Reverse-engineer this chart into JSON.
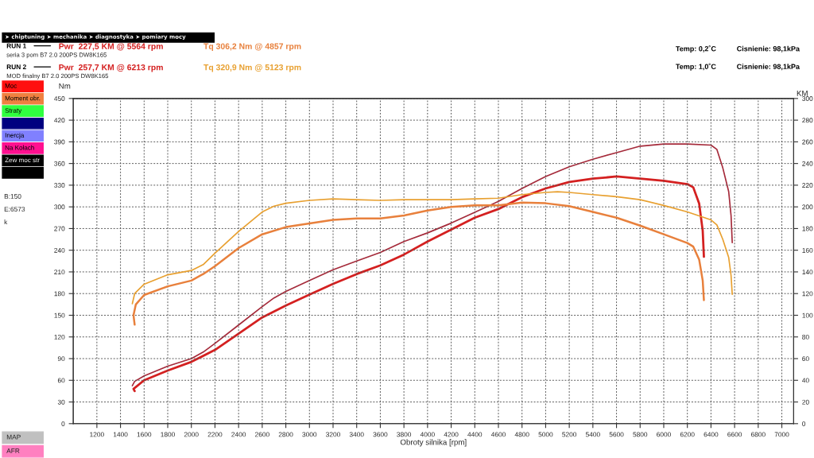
{
  "chart_data": {
    "type": "line",
    "xlabel": "Obroty silnika [rpm]",
    "ylabel": "Nm",
    "y2label": "KM",
    "xlim": [
      1000,
      7100
    ],
    "xticks": [
      1200,
      1400,
      1600,
      1800,
      2000,
      2200,
      2400,
      2600,
      2800,
      3000,
      3200,
      3400,
      3600,
      3800,
      4000,
      4200,
      4400,
      4600,
      4800,
      5000,
      5200,
      5400,
      5600,
      5800,
      6000,
      6200,
      6400,
      6600,
      6800,
      7000
    ],
    "ylim": [
      0,
      450
    ],
    "yticks": [
      0,
      30,
      60,
      90,
      120,
      150,
      180,
      210,
      240,
      270,
      300,
      330,
      360,
      390,
      420,
      450
    ],
    "y2lim": [
      0,
      300
    ],
    "y2ticks": [
      0,
      20,
      40,
      60,
      80,
      100,
      120,
      140,
      160,
      180,
      200,
      220,
      240,
      260,
      280,
      300
    ],
    "grid": true,
    "series": [
      {
        "color": "#d42020",
        "axis": "y2",
        "x": [
          1520,
          1510,
          1600,
          1800,
          2000,
          2200,
          2400,
          2600,
          2800,
          3000,
          3200,
          3400,
          3600,
          3800,
          4000,
          4200,
          4400,
          4600,
          4800,
          5000,
          5200,
          5400,
          5600,
          5800,
          6000,
          6200,
          6250,
          6300,
          6330,
          6340
        ],
        "values": [
          30,
          32,
          40,
          49,
          57,
          68,
          83,
          98,
          109,
          119,
          129,
          138,
          146,
          156,
          168,
          179,
          190,
          198,
          209,
          217,
          223,
          226,
          228,
          226,
          224,
          221,
          218,
          203,
          178,
          154
        ]
      },
      {
        "color": "#a52a3a",
        "axis": "y2",
        "x": [
          1500,
          1520,
          1600,
          1800,
          2000,
          2100,
          2200,
          2400,
          2600,
          2700,
          2800,
          3000,
          3200,
          3400,
          3600,
          3800,
          4000,
          4200,
          4400,
          4600,
          4800,
          5000,
          5200,
          5400,
          5600,
          5800,
          6000,
          6200,
          6400,
          6450,
          6500,
          6550,
          6570,
          6580
        ],
        "values": [
          35,
          39,
          44,
          53,
          60,
          66,
          74,
          91,
          108,
          116,
          122,
          132,
          142,
          150,
          158,
          168,
          176,
          185,
          195,
          205,
          217,
          228,
          237,
          244,
          250,
          256,
          258,
          258,
          257,
          253,
          236,
          214,
          192,
          167
        ]
      },
      {
        "color": "#e8803c",
        "axis": "y",
        "x": [
          1520,
          1510,
          1530,
          1600,
          1800,
          2000,
          2100,
          2200,
          2400,
          2600,
          2800,
          3000,
          3200,
          3400,
          3600,
          3800,
          4000,
          4200,
          4400,
          4600,
          4800,
          5000,
          5200,
          5400,
          5600,
          5800,
          6000,
          6200,
          6250,
          6300,
          6330,
          6340
        ],
        "values": [
          137,
          150,
          165,
          178,
          190,
          198,
          207,
          218,
          243,
          262,
          272,
          277,
          282,
          284,
          284,
          288,
          295,
          300,
          302,
          302,
          306,
          305,
          301,
          293,
          285,
          274,
          262,
          250,
          245,
          227,
          198,
          171
        ]
      },
      {
        "color": "#e8a030",
        "axis": "y",
        "x": [
          1500,
          1520,
          1600,
          1800,
          2000,
          2100,
          2200,
          2400,
          2600,
          2700,
          2800,
          3000,
          3200,
          3400,
          3600,
          3800,
          4000,
          4200,
          4400,
          4600,
          4800,
          5000,
          5100,
          5200,
          5400,
          5600,
          5800,
          6000,
          6200,
          6400,
          6450,
          6500,
          6550,
          6570,
          6580
        ],
        "values": [
          166,
          180,
          193,
          206,
          212,
          220,
          236,
          266,
          293,
          301,
          305,
          309,
          311,
          310,
          309,
          310,
          310,
          310,
          311,
          312,
          317,
          320,
          321,
          320,
          317,
          314,
          310,
          302,
          293,
          282,
          275,
          255,
          230,
          205,
          179
        ]
      }
    ],
    "annotations": [
      "➤ chiptuning ➤ mechanika ➤ diagnostyka ➤ pomiary mocy",
      "RUN 1",
      "Pwr  227,5 KM @ 5564 rpm",
      "Tq 306,2 Nm @ 4857 rpm",
      "seria 3 pom B7 2.0 200PS DW8K165",
      "Temp: 0,2˚C",
      "Cisnienie: 98,1kPa",
      "RUN 2",
      "Pwr  257,7 KM @ 6213 rpm",
      "Tq 320,9 Nm @ 5123 rpm",
      "MOD finalny B7 2.0 200PS DW8K165",
      "Temp: 1,0˚C",
      "Cisnienie: 98,1kPa",
      "Moc",
      "Moment obr.",
      "Straty",
      "Inercja",
      "Na Kołach",
      "Zew moc str",
      "B:150",
      "E:6573",
      "k",
      "MAP",
      "AFR"
    ]
  }
}
